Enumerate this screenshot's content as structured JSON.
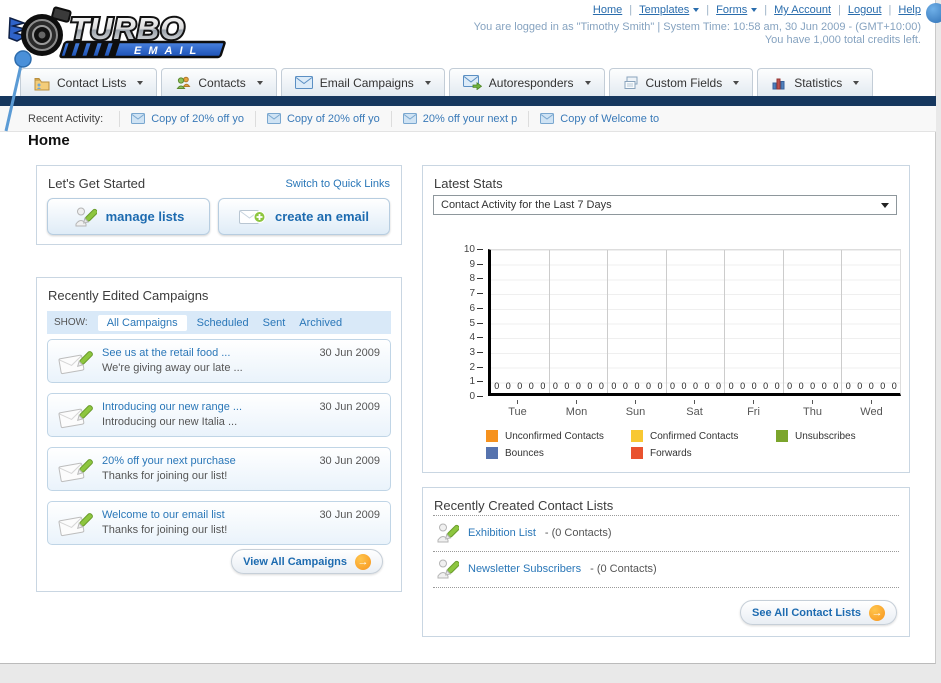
{
  "header": {
    "logo": {
      "line1": "TURBO",
      "line2": "EMAIL"
    },
    "nav": [
      {
        "label": "Home"
      },
      {
        "label": "Templates"
      },
      {
        "label": "Forms"
      },
      {
        "label": "My Account"
      },
      {
        "label": "Logout"
      },
      {
        "label": "Help"
      }
    ],
    "login_line1": "You are logged in as \"Timothy Smith\" | System Time: 10:58 am, 30 Jun 2009 - (GMT+10:00)",
    "login_line2": "You have 1,000 total credits left."
  },
  "tabs": [
    {
      "label": "Contact Lists",
      "icon": "folder-icon"
    },
    {
      "label": "Contacts",
      "icon": "people-icon"
    },
    {
      "label": "Email Campaigns",
      "icon": "envelope-icon"
    },
    {
      "label": "Autoresponders",
      "icon": "envelope-arrow-icon"
    },
    {
      "label": "Custom Fields",
      "icon": "fields-icon"
    },
    {
      "label": "Statistics",
      "icon": "bar-chart-icon"
    }
  ],
  "recent_activity": {
    "label": "Recent Activity:",
    "items": [
      "Copy of 20% off yo",
      "Copy of 20% off yo",
      "20% off your next p",
      "Copy of Welcome to"
    ]
  },
  "page_title": "Home",
  "get_started": {
    "title": "Let's Get Started",
    "switch_link": "Switch to Quick Links",
    "buttons": [
      {
        "label": "manage lists"
      },
      {
        "label": "create an email"
      }
    ]
  },
  "campaigns": {
    "title": "Recently Edited Campaigns",
    "show_label": "SHOW:",
    "filters": [
      "All Campaigns",
      "Scheduled",
      "Sent",
      "Archived"
    ],
    "active_filter": "All Campaigns",
    "items": [
      {
        "title": "See us at the retail food ...",
        "subtitle": "We're giving away our late ...",
        "date": "30 Jun 2009"
      },
      {
        "title": "Introducing our new range ...",
        "subtitle": "Introducing our new Italia ...",
        "date": "30 Jun 2009"
      },
      {
        "title": "20% off your next purchase",
        "subtitle": "Thanks for joining our list!",
        "date": "30 Jun 2009"
      },
      {
        "title": "Welcome to our email list",
        "subtitle": "Thanks for joining our list!",
        "date": "30 Jun 2009"
      }
    ],
    "view_all_label": "View All Campaigns"
  },
  "latest_stats": {
    "title": "Latest Stats",
    "dropdown_value": "Contact Activity for the Last 7 Days"
  },
  "chart_data": {
    "type": "bar",
    "title": "Contact Activity for the Last 7 Days",
    "categories": [
      "Tue",
      "Mon",
      "Sun",
      "Sat",
      "Fri",
      "Thu",
      "Wed"
    ],
    "series": [
      {
        "name": "Unconfirmed Contacts",
        "color": "#F6921E",
        "values": [
          0,
          0,
          0,
          0,
          0,
          0,
          0
        ]
      },
      {
        "name": "Confirmed Contacts",
        "color": "#F8C832",
        "values": [
          0,
          0,
          0,
          0,
          0,
          0,
          0
        ]
      },
      {
        "name": "Unsubscribes",
        "color": "#7BA52C",
        "values": [
          0,
          0,
          0,
          0,
          0,
          0,
          0
        ]
      },
      {
        "name": "Bounces",
        "color": "#5673AE",
        "values": [
          0,
          0,
          0,
          0,
          0,
          0,
          0
        ]
      },
      {
        "name": "Forwards",
        "color": "#E9522E",
        "values": [
          0,
          0,
          0,
          0,
          0,
          0,
          0
        ]
      }
    ],
    "xlabel": "",
    "ylabel": "",
    "ylim": [
      0,
      10
    ],
    "yticks": [
      10,
      9,
      8,
      7,
      6,
      5,
      4,
      3,
      2,
      1,
      0
    ],
    "grid": true,
    "legend_position": "bottom"
  },
  "contact_lists": {
    "title": "Recently Created Contact Lists",
    "items": [
      {
        "name": "Exhibition List",
        "suffix": "- (0 Contacts)"
      },
      {
        "name": "Newsletter Subscribers",
        "suffix": "- (0 Contacts)"
      }
    ],
    "see_all_label": "See All Contact Lists"
  }
}
